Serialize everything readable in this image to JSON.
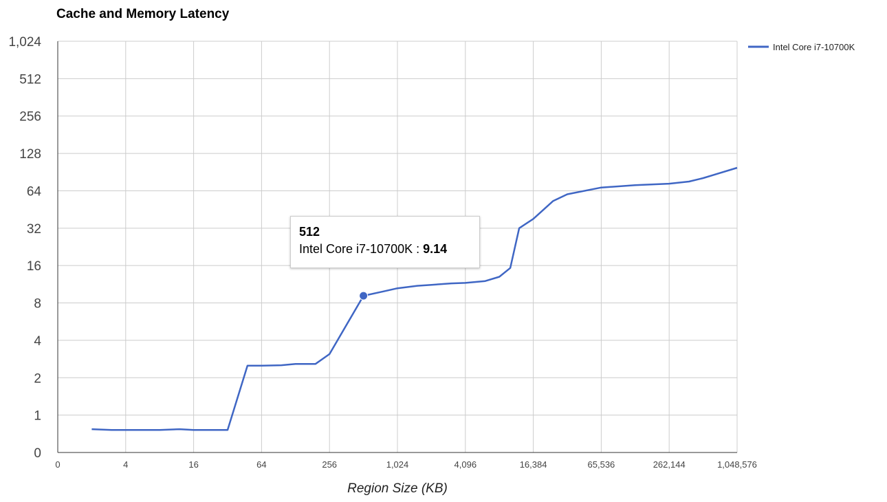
{
  "chart_data": {
    "type": "line",
    "title": "Cache and Memory Latency",
    "xlabel": "Region Size (KB)",
    "ylabel": "",
    "x_scale": "log2",
    "y_scale": "log2",
    "x_ticks": [
      "0",
      "4",
      "16",
      "64",
      "256",
      "1,024",
      "4,096",
      "16,384",
      "65,536",
      "262,144",
      "1,048,576"
    ],
    "y_ticks": [
      "0",
      "1",
      "2",
      "4",
      "8",
      "16",
      "32",
      "64",
      "128",
      "256",
      "512",
      "1,024"
    ],
    "grid": true,
    "legend_position": "right",
    "series": [
      {
        "name": "Intel Core i7-10700K",
        "color": "#3f66c4",
        "x": [
          2,
          3,
          4,
          6,
          8,
          12,
          16,
          24,
          32,
          48,
          64,
          96,
          128,
          192,
          256,
          512,
          768,
          1024,
          1536,
          2048,
          3072,
          4096,
          6144,
          8192,
          10240,
          12288,
          16384,
          24576,
          32768,
          65536,
          131072,
          262144,
          393216,
          524288,
          1048576
        ],
        "values": [
          0.77,
          0.76,
          0.76,
          0.76,
          0.76,
          0.77,
          0.76,
          0.76,
          0.76,
          2.5,
          2.5,
          2.52,
          2.58,
          2.58,
          3.1,
          9.14,
          9.9,
          10.5,
          11.0,
          11.2,
          11.5,
          11.6,
          12.0,
          13.0,
          15.3,
          32,
          38,
          53,
          60,
          68,
          71,
          73,
          76,
          81,
          98
        ]
      }
    ],
    "tooltip": {
      "x_label": "512",
      "series_label": "Intel Core i7-10700K : ",
      "value_label": "9.14",
      "x": 512,
      "y": 9.14
    }
  }
}
